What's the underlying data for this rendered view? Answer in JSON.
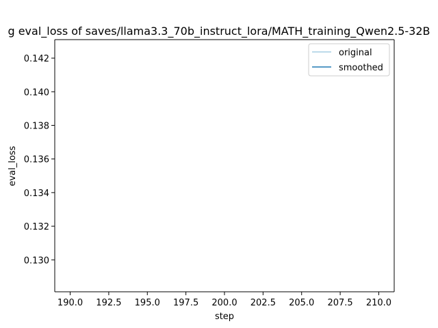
{
  "chart_data": {
    "type": "line",
    "title": "g eval_loss of saves/llama3.3_70b_instruct_lora/MATH_training_Qwen2.5-32B",
    "xlabel": "step",
    "ylabel": "eval_loss",
    "xlim": [
      189.0,
      211.0
    ],
    "ylim": [
      0.1281,
      0.1431
    ],
    "xticks": [
      190.0,
      192.5,
      195.0,
      197.5,
      200.0,
      202.5,
      205.0,
      207.5,
      210.0
    ],
    "xtick_labels": [
      "190.0",
      "192.5",
      "195.0",
      "197.5",
      "200.0",
      "202.5",
      "205.0",
      "207.5",
      "210.0"
    ],
    "yticks": [
      0.13,
      0.132,
      0.134,
      0.136,
      0.138,
      0.14,
      0.142
    ],
    "ytick_labels": [
      "0.130",
      "0.132",
      "0.134",
      "0.136",
      "0.138",
      "0.140",
      "0.142"
    ],
    "grid": false,
    "legend_position": "upper right",
    "series": [
      {
        "name": "original",
        "color": "#a6cee3",
        "x": [],
        "y": []
      },
      {
        "name": "smoothed",
        "color": "#1f78b4",
        "x": [],
        "y": []
      }
    ]
  }
}
